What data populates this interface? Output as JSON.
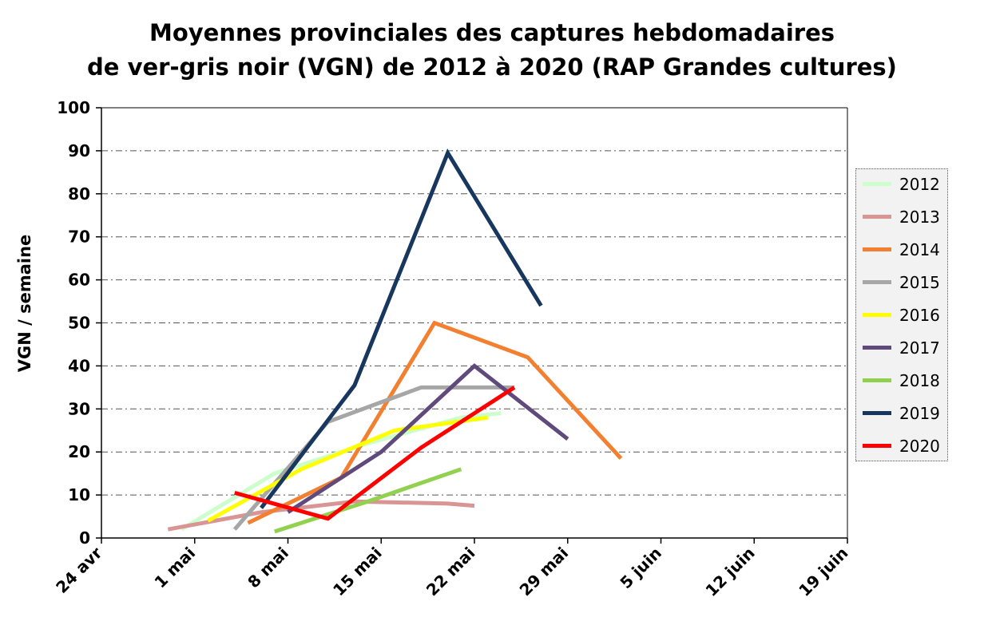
{
  "chart_data": {
    "type": "line",
    "title_lines": [
      "Moyennes provinciales des captures hebdomadaires",
      "de ver-gris noir (VGN) de 2012 à 2020 (RAP Grandes cultures)"
    ],
    "xlabel": "",
    "ylabel": "VGN / semaine",
    "ylim": [
      0,
      100
    ],
    "yticks": [
      0,
      10,
      20,
      30,
      40,
      50,
      60,
      70,
      80,
      90,
      100
    ],
    "xlim": [
      "04-24",
      "06-19"
    ],
    "xticks": [
      {
        "date": "04-24",
        "label": "24 avr"
      },
      {
        "date": "05-01",
        "label": "1 mai"
      },
      {
        "date": "05-08",
        "label": "8 mai"
      },
      {
        "date": "05-15",
        "label": "15 mai"
      },
      {
        "date": "05-22",
        "label": "22 mai"
      },
      {
        "date": "05-29",
        "label": "29 mai"
      },
      {
        "date": "06-05",
        "label": "5 juin"
      },
      {
        "date": "06-12",
        "label": "12 juin"
      },
      {
        "date": "06-19",
        "label": "19 juin"
      }
    ],
    "grid": "horizontal dash-dot",
    "legend_position": "right",
    "series": [
      {
        "name": "2012",
        "color": "#ccffcc",
        "points": [
          [
            "04-30",
            2
          ],
          [
            "05-07",
            15
          ],
          [
            "05-14",
            22
          ],
          [
            "05-21",
            28
          ],
          [
            "05-24",
            29
          ]
        ]
      },
      {
        "name": "2013",
        "color": "#d99594",
        "points": [
          [
            "04-29",
            2
          ],
          [
            "05-06",
            6
          ],
          [
            "05-13",
            8.5
          ],
          [
            "05-20",
            8
          ],
          [
            "05-22",
            7.5
          ]
        ]
      },
      {
        "name": "2014",
        "color": "#f28030",
        "points": [
          [
            "05-05",
            3.5
          ],
          [
            "05-12",
            14
          ],
          [
            "05-19",
            50
          ],
          [
            "05-26",
            42
          ],
          [
            "06-02",
            18.5
          ]
        ]
      },
      {
        "name": "2015",
        "color": "#a6a6a6",
        "points": [
          [
            "05-04",
            2
          ],
          [
            "05-11",
            27
          ],
          [
            "05-18",
            35
          ],
          [
            "05-25",
            35
          ]
        ]
      },
      {
        "name": "2016",
        "color": "#ffff00",
        "points": [
          [
            "05-02",
            4
          ],
          [
            "05-09",
            16
          ],
          [
            "05-16",
            25
          ],
          [
            "05-23",
            28
          ]
        ]
      },
      {
        "name": "2017",
        "color": "#604a7b",
        "points": [
          [
            "05-08",
            6
          ],
          [
            "05-15",
            20
          ],
          [
            "05-22",
            40
          ],
          [
            "05-29",
            23
          ]
        ]
      },
      {
        "name": "2018",
        "color": "#92d050",
        "points": [
          [
            "05-07",
            1.5
          ],
          [
            "05-14",
            8.5
          ],
          [
            "05-21",
            16
          ]
        ]
      },
      {
        "name": "2019",
        "color": "#17375e",
        "points": [
          [
            "05-06",
            7
          ],
          [
            "05-13",
            35.5
          ],
          [
            "05-20",
            89.5
          ],
          [
            "05-27",
            54
          ]
        ]
      },
      {
        "name": "2020",
        "color": "#ff0000",
        "points": [
          [
            "05-04",
            10.5
          ],
          [
            "05-11",
            4.5
          ],
          [
            "05-18",
            21
          ],
          [
            "05-25",
            35
          ]
        ]
      }
    ]
  }
}
